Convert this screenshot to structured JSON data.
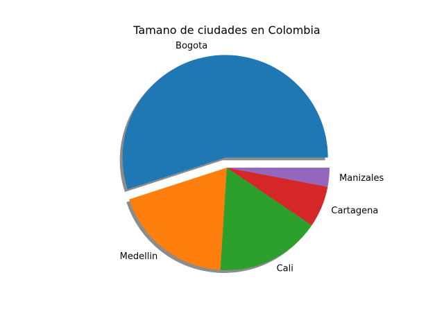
{
  "chart_data": {
    "type": "pie",
    "title": "Tamano de ciudades en Colombia",
    "labels": [
      "Bogota",
      "Medellin",
      "Cali",
      "Cartagena",
      "Manizales"
    ],
    "values": [
      55,
      19,
      16.5,
      6.5,
      3
    ],
    "colors": [
      "#1f77b4",
      "#ff7f0e",
      "#2ca02c",
      "#d62728",
      "#9467bd"
    ],
    "explode": [
      0.1,
      0,
      0,
      0,
      0
    ],
    "shadow": true,
    "start_angle": 0,
    "direction": "counterclockwise"
  }
}
